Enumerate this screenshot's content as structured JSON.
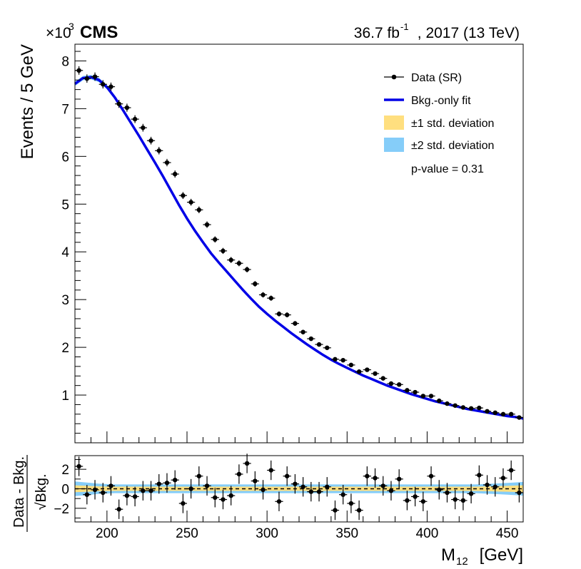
{
  "header": {
    "scale_prefix": "×10",
    "scale_exp": "3",
    "experiment": "CMS",
    "lumi_value": "36.7 fb",
    "lumi_exp": "-1",
    "lumi_suffix": ", 2017 (13 TeV)"
  },
  "legend": {
    "data": "Data (SR)",
    "fit": "Bkg.-only fit",
    "band1": "±1 std. deviation",
    "band2": "±2 std. deviation",
    "pvalue": "p-value = 0.31"
  },
  "colors": {
    "fit_line": "#0000e6",
    "band1": "#ffdf7f",
    "band2": "#85cdf9",
    "data": "#000000"
  },
  "chart_data": [
    {
      "type": "scatter",
      "panel": "main",
      "ylabel": "Events / 5 GeV",
      "y_multiplier_label": "×10^3",
      "x_range": [
        180,
        460
      ],
      "ylim": [
        0.0,
        8.35
      ],
      "y_ticks": [
        1,
        2,
        3,
        4,
        5,
        6,
        7,
        8
      ],
      "grid": false,
      "legend_position": "top-right",
      "series": [
        {
          "name": "Data (SR)",
          "x": [
            182.5,
            187.5,
            192.5,
            197.5,
            202.5,
            207.5,
            212.5,
            217.5,
            222.5,
            227.5,
            232.5,
            237.5,
            242.5,
            247.5,
            252.5,
            257.5,
            262.5,
            267.5,
            272.5,
            277.5,
            282.5,
            287.5,
            292.5,
            297.5,
            302.5,
            307.5,
            312.5,
            317.5,
            322.5,
            327.5,
            332.5,
            337.5,
            342.5,
            347.5,
            352.5,
            357.5,
            362.5,
            367.5,
            372.5,
            377.5,
            382.5,
            387.5,
            392.5,
            397.5,
            402.5,
            407.5,
            412.5,
            417.5,
            422.5,
            427.5,
            432.5,
            437.5,
            442.5,
            447.5,
            452.5,
            457.5
          ],
          "y": [
            7.8,
            7.63,
            7.67,
            7.51,
            7.46,
            7.1,
            7.02,
            6.78,
            6.6,
            6.33,
            6.12,
            5.87,
            5.63,
            5.18,
            5.04,
            4.88,
            4.57,
            4.26,
            4.02,
            3.83,
            3.76,
            3.63,
            3.33,
            3.1,
            3.03,
            2.7,
            2.68,
            2.5,
            2.32,
            2.18,
            2.06,
            1.99,
            1.75,
            1.73,
            1.63,
            1.49,
            1.53,
            1.45,
            1.35,
            1.24,
            1.22,
            1.1,
            1.06,
            0.98,
            0.98,
            0.88,
            0.82,
            0.78,
            0.74,
            0.72,
            0.73,
            0.66,
            0.63,
            0.6,
            0.6,
            0.53
          ],
          "y_error": [
            0.088,
            0.087,
            0.088,
            0.087,
            0.086,
            0.084,
            0.084,
            0.082,
            0.081,
            0.08,
            0.078,
            0.077,
            0.075,
            0.072,
            0.071,
            0.07,
            0.068,
            0.065,
            0.063,
            0.062,
            0.061,
            0.06,
            0.058,
            0.056,
            0.055,
            0.052,
            0.052,
            0.05,
            0.048,
            0.047,
            0.045,
            0.045,
            0.042,
            0.042,
            0.04,
            0.039,
            0.039,
            0.038,
            0.037,
            0.035,
            0.035,
            0.033,
            0.033,
            0.031,
            0.031,
            0.03,
            0.029,
            0.028,
            0.027,
            0.027,
            0.027,
            0.026,
            0.025,
            0.024,
            0.024,
            0.023
          ],
          "x_half_width": 2.5
        },
        {
          "name": "Bkg.-only fit",
          "x": [
            180,
            185,
            190,
            195,
            200,
            205,
            210,
            215,
            220,
            225,
            230,
            235,
            240,
            245,
            250,
            255,
            260,
            265,
            270,
            275,
            280,
            285,
            290,
            295,
            300,
            305,
            310,
            315,
            320,
            325,
            330,
            335,
            340,
            345,
            350,
            355,
            360,
            365,
            370,
            375,
            380,
            385,
            390,
            395,
            400,
            405,
            410,
            415,
            420,
            425,
            430,
            435,
            440,
            445,
            450,
            455,
            460
          ],
          "y": [
            7.52,
            7.64,
            7.66,
            7.6,
            7.45,
            7.23,
            6.97,
            6.7,
            6.43,
            6.15,
            5.87,
            5.58,
            5.28,
            4.98,
            4.7,
            4.44,
            4.2,
            3.97,
            3.77,
            3.58,
            3.39,
            3.2,
            3.02,
            2.85,
            2.7,
            2.56,
            2.43,
            2.3,
            2.18,
            2.06,
            1.95,
            1.84,
            1.74,
            1.65,
            1.57,
            1.49,
            1.41,
            1.34,
            1.27,
            1.2,
            1.14,
            1.08,
            1.02,
            0.97,
            0.92,
            0.87,
            0.83,
            0.79,
            0.75,
            0.71,
            0.68,
            0.65,
            0.62,
            0.59,
            0.56,
            0.54,
            0.51
          ]
        }
      ]
    },
    {
      "type": "scatter",
      "panel": "ratio",
      "xlabel": "M_12 [GeV]",
      "ylabel": "Data - Bkg. / √Bkg.",
      "x_range": [
        180,
        460
      ],
      "ylim": [
        -3.4,
        3.4
      ],
      "x_ticks": [
        200,
        250,
        300,
        350,
        400,
        450
      ],
      "y_ticks": [
        -2,
        0,
        2
      ],
      "reference_line": 0,
      "series": [
        {
          "name": "Data - Bkg. / √Bkg.",
          "x": [
            182.5,
            187.5,
            192.5,
            197.5,
            202.5,
            207.5,
            212.5,
            217.5,
            222.5,
            227.5,
            232.5,
            237.5,
            242.5,
            247.5,
            252.5,
            257.5,
            262.5,
            267.5,
            272.5,
            277.5,
            282.5,
            287.5,
            292.5,
            297.5,
            302.5,
            307.5,
            312.5,
            317.5,
            322.5,
            327.5,
            332.5,
            337.5,
            342.5,
            347.5,
            352.5,
            357.5,
            362.5,
            367.5,
            372.5,
            377.5,
            382.5,
            387.5,
            392.5,
            397.5,
            402.5,
            407.5,
            412.5,
            417.5,
            422.5,
            427.5,
            432.5,
            437.5,
            442.5,
            447.5,
            452.5,
            457.5
          ],
          "y": [
            2.3,
            -0.6,
            -0.1,
            -0.4,
            0.3,
            -2.1,
            -0.7,
            -0.8,
            -0.2,
            -0.2,
            0.5,
            0.6,
            0.9,
            -1.5,
            0.0,
            1.3,
            0.3,
            -0.9,
            -1.1,
            -0.7,
            1.5,
            2.6,
            0.8,
            -0.1,
            1.9,
            -1.3,
            1.3,
            0.5,
            0.2,
            -0.3,
            -0.3,
            0.2,
            -2.2,
            -0.6,
            -1.5,
            -2.2,
            1.3,
            1.1,
            0.3,
            -0.2,
            1.0,
            -1.2,
            -0.8,
            -1.3,
            1.3,
            -0.1,
            -0.4,
            -1.1,
            -1.2,
            -0.5,
            1.4,
            0.4,
            0.2,
            1.1,
            1.9,
            -0.4
          ]
        }
      ],
      "band_1sigma_halfwidth": [
        0.35,
        0.32,
        0.28,
        0.25,
        0.23,
        0.22,
        0.22,
        0.22,
        0.22,
        0.22,
        0.22,
        0.22,
        0.22,
        0.22,
        0.22,
        0.22,
        0.22,
        0.22,
        0.22,
        0.22,
        0.22,
        0.22,
        0.22,
        0.22,
        0.22,
        0.22,
        0.22,
        0.22,
        0.22,
        0.22,
        0.22,
        0.22,
        0.22,
        0.22,
        0.22,
        0.22,
        0.22,
        0.22,
        0.22,
        0.22,
        0.22,
        0.22,
        0.22,
        0.22,
        0.22,
        0.22,
        0.22,
        0.22,
        0.22,
        0.22,
        0.22,
        0.24,
        0.26,
        0.28,
        0.3,
        0.33,
        0.36
      ],
      "band_2sigma_halfwidth": [
        0.75,
        0.68,
        0.6,
        0.52,
        0.48,
        0.45,
        0.45,
        0.45,
        0.45,
        0.45,
        0.45,
        0.45,
        0.45,
        0.45,
        0.45,
        0.45,
        0.45,
        0.45,
        0.45,
        0.45,
        0.45,
        0.45,
        0.45,
        0.45,
        0.45,
        0.45,
        0.45,
        0.45,
        0.45,
        0.45,
        0.45,
        0.45,
        0.45,
        0.45,
        0.45,
        0.45,
        0.45,
        0.45,
        0.45,
        0.45,
        0.45,
        0.45,
        0.45,
        0.45,
        0.45,
        0.45,
        0.45,
        0.45,
        0.45,
        0.45,
        0.45,
        0.48,
        0.52,
        0.56,
        0.6,
        0.65,
        0.7
      ]
    }
  ]
}
